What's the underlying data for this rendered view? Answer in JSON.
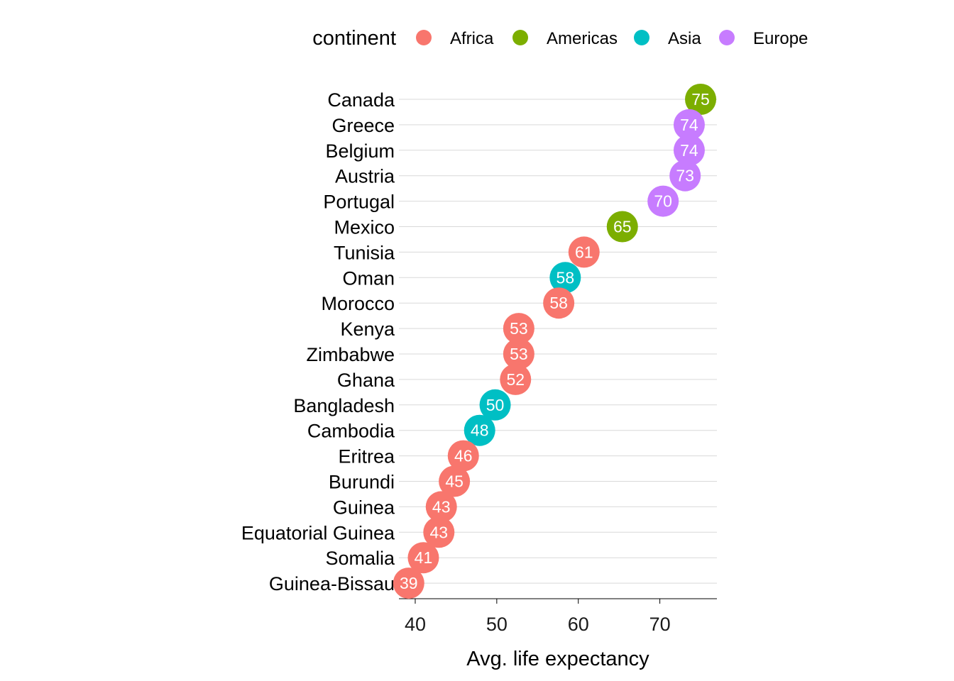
{
  "chart_data": {
    "type": "scatter",
    "xlabel": "Avg. life expectancy",
    "xlim": [
      38,
      77
    ],
    "xticks": [
      40,
      50,
      60,
      70
    ],
    "grid": "horizontal",
    "legend": {
      "title": "continent",
      "placement": "top",
      "entries": [
        {
          "name": "Africa",
          "color": "#F8766D"
        },
        {
          "name": "Americas",
          "color": "#7CAE00"
        },
        {
          "name": "Asia",
          "color": "#00BFC4"
        },
        {
          "name": "Europe",
          "color": "#C77CFF"
        }
      ]
    },
    "points": [
      {
        "country": "Canada",
        "continent": "Americas",
        "value": 75,
        "label": "75"
      },
      {
        "country": "Greece",
        "continent": "Europe",
        "value": 73.6,
        "label": "74"
      },
      {
        "country": "Belgium",
        "continent": "Europe",
        "value": 73.6,
        "label": "74"
      },
      {
        "country": "Austria",
        "continent": "Europe",
        "value": 73.1,
        "label": "73"
      },
      {
        "country": "Portugal",
        "continent": "Europe",
        "value": 70.4,
        "label": "70"
      },
      {
        "country": "Mexico",
        "continent": "Americas",
        "value": 65.4,
        "label": "65"
      },
      {
        "country": "Tunisia",
        "continent": "Africa",
        "value": 60.7,
        "label": "61"
      },
      {
        "country": "Oman",
        "continent": "Asia",
        "value": 58.4,
        "label": "58"
      },
      {
        "country": "Morocco",
        "continent": "Africa",
        "value": 57.6,
        "label": "58"
      },
      {
        "country": "Kenya",
        "continent": "Africa",
        "value": 52.7,
        "label": "53"
      },
      {
        "country": "Zimbabwe",
        "continent": "Africa",
        "value": 52.7,
        "label": "53"
      },
      {
        "country": "Ghana",
        "continent": "Africa",
        "value": 52.3,
        "label": "52"
      },
      {
        "country": "Bangladesh",
        "continent": "Asia",
        "value": 49.8,
        "label": "50"
      },
      {
        "country": "Cambodia",
        "continent": "Asia",
        "value": 47.9,
        "label": "48"
      },
      {
        "country": "Eritrea",
        "continent": "Africa",
        "value": 45.9,
        "label": "46"
      },
      {
        "country": "Burundi",
        "continent": "Africa",
        "value": 44.8,
        "label": "45"
      },
      {
        "country": "Guinea",
        "continent": "Africa",
        "value": 43.2,
        "label": "43"
      },
      {
        "country": "Equatorial Guinea",
        "continent": "Africa",
        "value": 42.9,
        "label": "43"
      },
      {
        "country": "Somalia",
        "continent": "Africa",
        "value": 41,
        "label": "41"
      },
      {
        "country": "Guinea-Bissau",
        "continent": "Africa",
        "value": 39.2,
        "label": "39"
      }
    ]
  }
}
